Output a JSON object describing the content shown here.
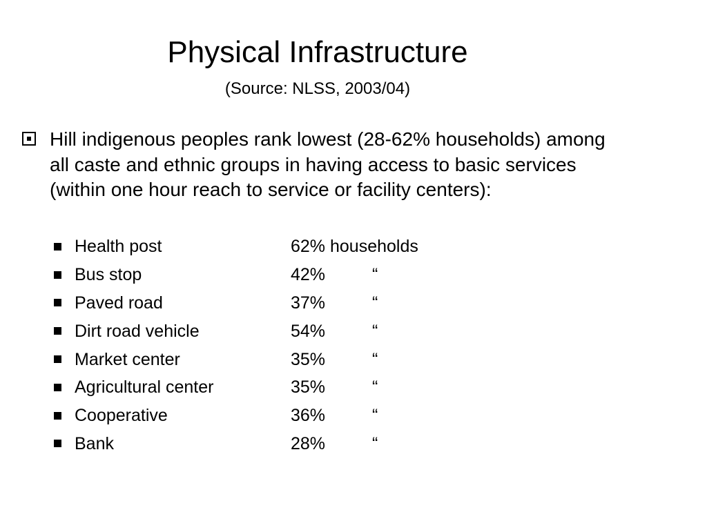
{
  "slide": {
    "title": "Physical Infrastructure",
    "subtitle": "(Source: NLSS, 2003/04)",
    "main_bullet": {
      "icon": "boxed-square-bullet-icon",
      "text": "Hill indigenous peoples rank lowest (28-62% households) among all caste and ethnic groups in having access to basic services (within one hour reach to service or facility centers):"
    },
    "sub_items": [
      {
        "label": "Health post",
        "value": "62% households"
      },
      {
        "label": "Bus stop",
        "value": "42%",
        "ditto": "“"
      },
      {
        "label": "Paved road",
        "value": "37%",
        "ditto": "“"
      },
      {
        "label": "Dirt road vehicle",
        "value": "54%",
        "ditto": "“"
      },
      {
        "label": "Market center",
        "value": "35%",
        "ditto": "“"
      },
      {
        "label": "Agricultural center",
        "value": "35%",
        "ditto": "“"
      },
      {
        "label": "Cooperative",
        "value": "36%",
        "ditto": "“"
      },
      {
        "label": "Bank",
        "value": "28%",
        "ditto": "“"
      }
    ]
  }
}
